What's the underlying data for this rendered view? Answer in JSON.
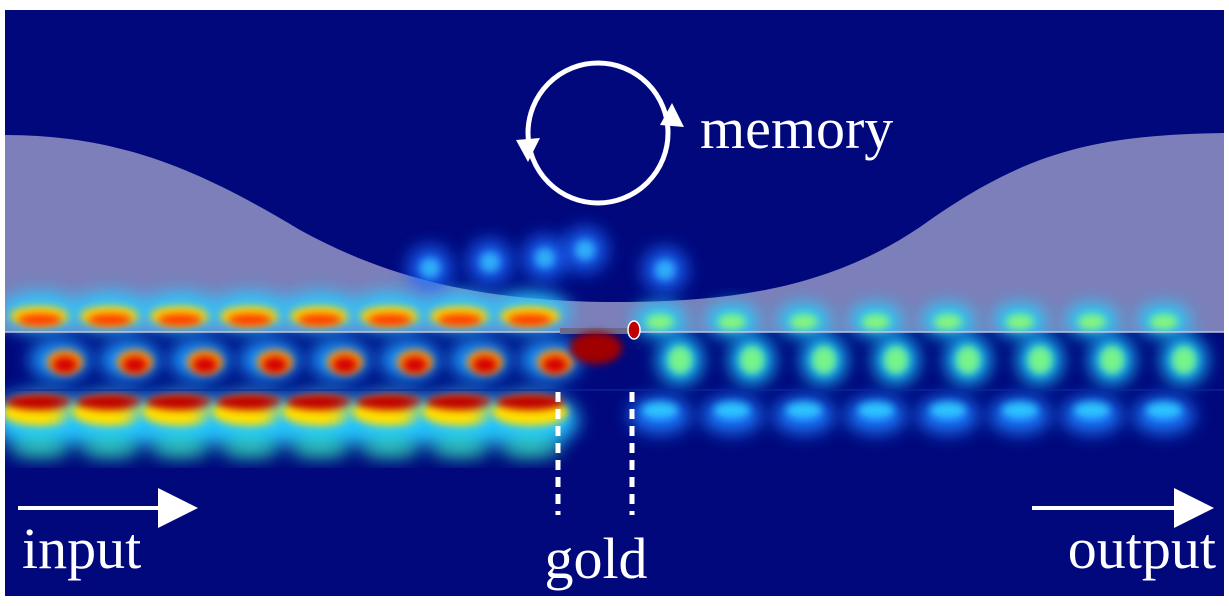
{
  "labels": {
    "memory": "memory",
    "input": "input",
    "gold": "gold",
    "output": "output"
  }
}
